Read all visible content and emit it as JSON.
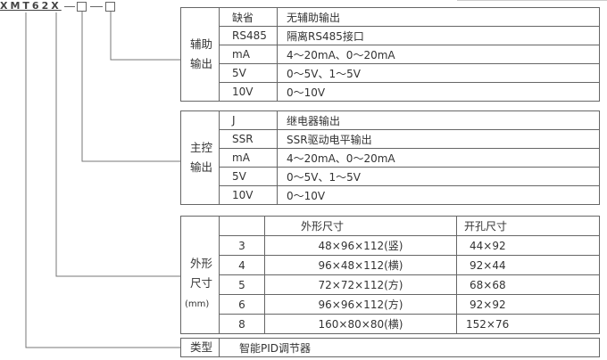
{
  "model_code": {
    "prefix": "XMT62X",
    "suffix": "—□—□"
  },
  "aux_output": {
    "label": "辅助输出",
    "rows": [
      [
        "缺省",
        "无辅助输出"
      ],
      [
        "RS485",
        "隔离RS485接口"
      ],
      [
        "mA",
        "4～20mA、0～20mA"
      ],
      [
        "5V",
        "0～5V、1～5V"
      ],
      [
        "10V",
        "0～10V"
      ]
    ]
  },
  "main_output": {
    "label": "主控输出",
    "rows": [
      [
        "J",
        "继电器输出"
      ],
      [
        "SSR",
        "SSR驱动电平输出"
      ],
      [
        "mA",
        "4～20mA、0～20mA"
      ],
      [
        "5V",
        "0～5V、1～5V"
      ],
      [
        "10V",
        "0～10V"
      ]
    ]
  },
  "dimensions": {
    "label": "外形尺寸",
    "unit": "(mm)",
    "headers": [
      "",
      "外形尺寸",
      "开孔尺寸"
    ],
    "rows": [
      [
        "3",
        "48×96×112(竖)",
        "44×92"
      ],
      [
        "4",
        "96×48×112(横)",
        "92×44"
      ],
      [
        "5",
        "72×72×112(方)",
        "68×68"
      ],
      [
        "6",
        "96×96×112(方)",
        "92×92"
      ],
      [
        "8",
        "160×80×80(横)",
        "152×76"
      ]
    ]
  },
  "type": {
    "label": "类型",
    "value": "智能PID调节器"
  }
}
